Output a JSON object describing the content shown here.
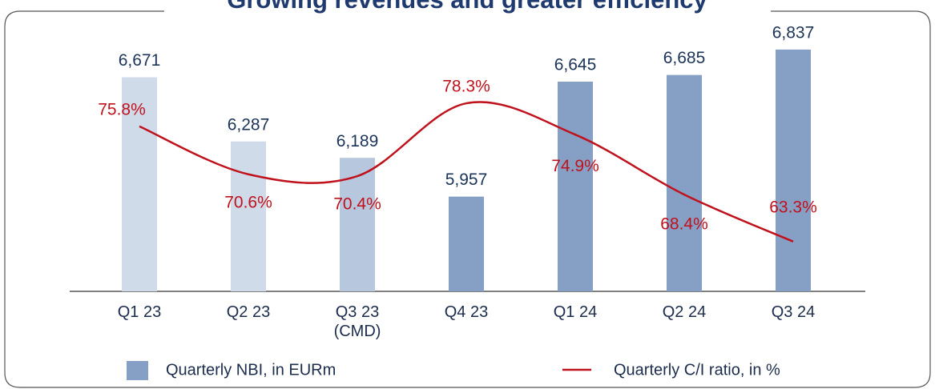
{
  "chart_data": {
    "type": "bar",
    "title": "Growing revenues and greater efficiency",
    "categories": [
      "Q1 23",
      "Q2 23",
      "Q3 23 (CMD)",
      "Q4 23",
      "Q1 24",
      "Q2 24",
      "Q3 24"
    ],
    "series": [
      {
        "name": "Quarterly NBI, in EURm",
        "type": "bar",
        "color": "#869fc5",
        "colors": [
          "#cfdbe9",
          "#cfdbe9",
          "#b7c7dd",
          "#869fc5",
          "#869fc5",
          "#869fc5",
          "#869fc5"
        ],
        "values": [
          6671,
          6287,
          6189,
          5957,
          6645,
          6685,
          6837
        ],
        "value_labels": [
          "6,671",
          "6,287",
          "6,189",
          "5,957",
          "6,645",
          "6,685",
          "6,837"
        ]
      },
      {
        "name": "Quarterly C/I ratio, in %",
        "type": "line",
        "axis": "y2",
        "color": "#c0121c",
        "values": [
          75.8,
          70.6,
          70.4,
          78.3,
          74.9,
          68.4,
          63.3
        ],
        "value_labels": [
          "75.8%",
          "70.6%",
          "70.4%",
          "78.3%",
          "74.9%",
          "68.4%",
          "63.3%"
        ]
      }
    ],
    "ylim": [
      5390,
      6990
    ],
    "y2lim": [
      57.9,
      86.9
    ]
  }
}
